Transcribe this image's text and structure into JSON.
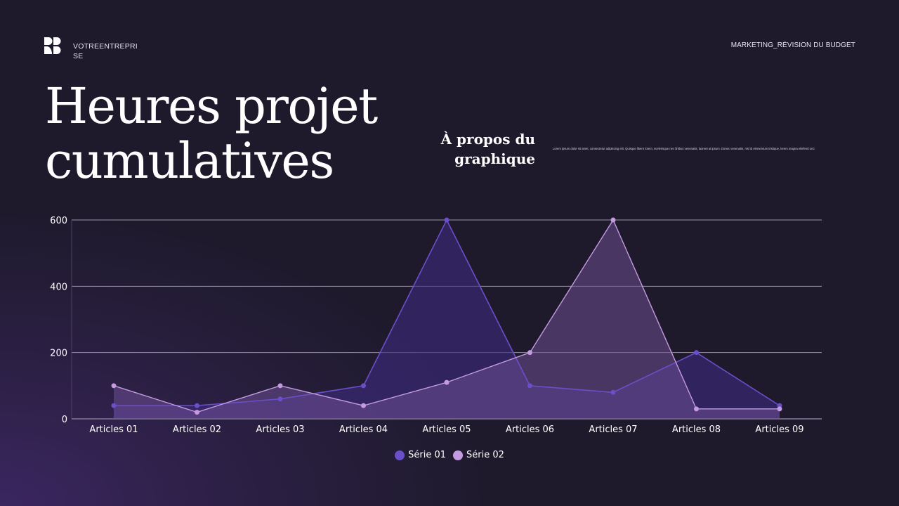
{
  "header": {
    "brand_name": "VOTREENTREPRISE",
    "section_label": "MARKETING_RÉVISION DU BUDGET",
    "logo_icon": "brand-logo-icon"
  },
  "title": "Heures projet cumulatives",
  "about": {
    "heading": "À propos du graphique",
    "description": "Lorem ipsum dolor sit amet, consectetur adipiscing elit. Quisque libero lorem, scelerisque nec finibus venenatis, laoreet at ipsum. Donec venenatis, nisl id elementum tristique, lorem magna eleifend orci."
  },
  "colors": {
    "background": "#1e1a2c",
    "serie01": "#6a4fc8",
    "serie02": "#c49be0",
    "grid": "#8a8299",
    "text": "#ffffff"
  },
  "chart_data": {
    "type": "area",
    "title": "Heures projet cumulatives",
    "xlabel": "",
    "ylabel": "",
    "categories": [
      "Articles 01",
      "Articles 02",
      "Articles 03",
      "Articles 04",
      "Articles 05",
      "Articles 06",
      "Articles 07",
      "Articles 08",
      "Articles 09"
    ],
    "series": [
      {
        "name": "Série 01",
        "color": "#6a4fc8",
        "values": [
          40,
          40,
          60,
          100,
          600,
          100,
          80,
          200,
          40
        ]
      },
      {
        "name": "Série 02",
        "color": "#c49be0",
        "values": [
          100,
          20,
          100,
          40,
          110,
          200,
          600,
          30,
          30
        ]
      }
    ],
    "yticks": [
      0,
      200,
      400,
      600
    ],
    "ylim": [
      0,
      600
    ],
    "grid": true,
    "legend_position": "bottom-center"
  },
  "legend": [
    {
      "label": "Série 01",
      "color": "#6a4fc8"
    },
    {
      "label": "Série 02",
      "color": "#c49be0"
    }
  ]
}
